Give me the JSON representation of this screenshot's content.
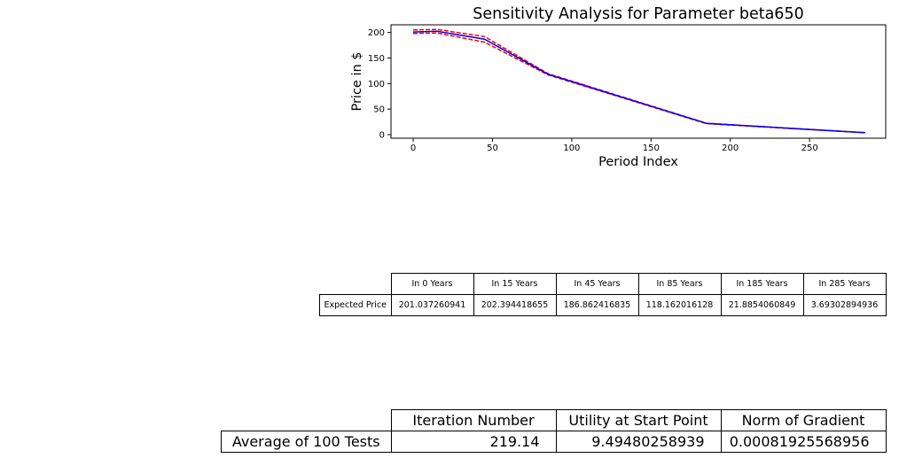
{
  "chart_data": {
    "type": "line",
    "title": "Sensitivity Analysis for Parameter beta650",
    "xlabel": "Period Index",
    "ylabel": "Price in $",
    "xlim": [
      -14,
      298
    ],
    "ylim": [
      -7,
      215
    ],
    "xticks": [
      0,
      50,
      100,
      150,
      200,
      250
    ],
    "yticks": [
      0,
      50,
      100,
      150,
      200
    ],
    "grid": false,
    "series": [
      {
        "style": "dashed",
        "color": "#ff0000",
        "x": [
          0,
          15,
          45,
          85,
          185,
          285
        ],
        "y": [
          198,
          199,
          181,
          117,
          21.5,
          3.7
        ]
      },
      {
        "style": "dashed",
        "color": "#ff0000",
        "x": [
          0,
          15,
          45,
          85,
          185,
          285
        ],
        "y": [
          205,
          206,
          192,
          119.5,
          22.3,
          3.7
        ]
      },
      {
        "style": "solid",
        "color": "#0000ff",
        "x": [
          0,
          15,
          45,
          85,
          185,
          285
        ],
        "y": [
          201.037260941,
          202.394418655,
          186.862416835,
          118.162016128,
          21.8854060849,
          3.69302894936
        ]
      }
    ]
  },
  "price_table": {
    "columns": [
      "In 0 Years",
      "In 15 Years",
      "In 45 Years",
      "In 85 Years",
      "In 185 Years",
      "In 285 Years"
    ],
    "row_label": "Expected Price",
    "values": [
      "201.037260941",
      "202.394418655",
      "186.862416835",
      "118.162016128",
      "21.8854060849",
      "3.69302894936"
    ]
  },
  "summary_table": {
    "columns": [
      "Iteration Number",
      "Utility at Start Point",
      "Norm of Gradient"
    ],
    "row_label": "Average of 100 Tests",
    "values": [
      "219.14",
      "9.49480258939",
      "0.00081925568956"
    ]
  }
}
